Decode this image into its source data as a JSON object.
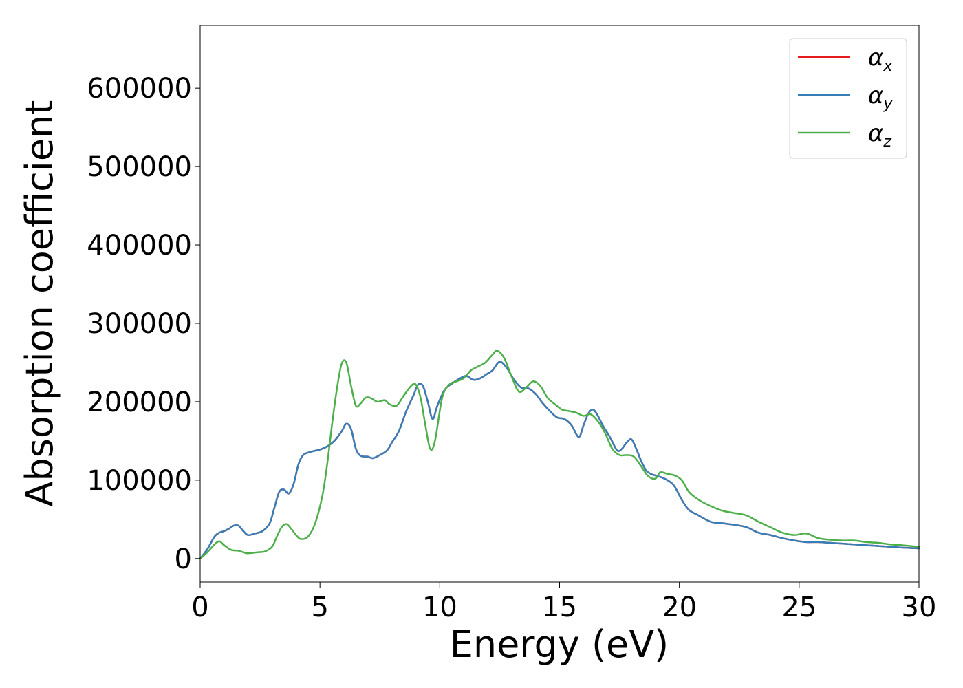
{
  "chart_data": {
    "type": "line",
    "title": "",
    "xlabel": "Energy (eV)",
    "ylabel": "Absorption coefficient",
    "xlim": [
      0,
      30
    ],
    "ylim": [
      -30000,
      680000
    ],
    "xticks": [
      0,
      5,
      10,
      15,
      20,
      25,
      30
    ],
    "yticks": [
      0,
      100000,
      200000,
      300000,
      400000,
      500000,
      600000
    ],
    "grid": false,
    "legend_position": "top-right",
    "series": [
      {
        "name": "α",
        "subscript": "x",
        "color": "#e41a1c",
        "x": [
          0,
          0.3,
          0.6,
          0.8,
          1.0,
          1.2,
          1.4,
          1.6,
          1.8,
          2.0,
          2.3,
          2.6,
          2.9,
          3.1,
          3.3,
          3.5,
          3.7,
          3.9,
          4.1,
          4.3,
          4.6,
          5.0,
          5.3,
          5.6,
          5.9,
          6.1,
          6.3,
          6.5,
          6.7,
          7.0,
          7.2,
          7.5,
          7.8,
          8.0,
          8.3,
          8.6,
          8.9,
          9.1,
          9.3,
          9.5,
          9.7,
          9.9,
          10.2,
          10.5,
          10.8,
          11.1,
          11.4,
          11.7,
          12.0,
          12.2,
          12.5,
          12.8,
          13.1,
          13.4,
          13.7,
          14.0,
          14.3,
          14.6,
          14.9,
          15.2,
          15.5,
          15.8,
          16.0,
          16.2,
          16.4,
          16.6,
          16.8,
          17.1,
          17.4,
          17.6,
          17.8,
          18.0,
          18.2,
          18.4,
          18.6,
          18.8,
          19.0,
          19.3,
          19.6,
          19.8,
          20.1,
          20.4,
          20.8,
          21.3,
          21.8,
          22.3,
          22.8,
          23.3,
          23.8,
          24.3,
          24.8,
          25.3,
          25.8,
          26.3,
          26.8,
          27.3,
          27.8,
          28.3,
          28.8,
          29.3,
          30.0
        ],
        "values": [
          0,
          12000,
          28000,
          33000,
          35000,
          38000,
          42000,
          42000,
          35000,
          30000,
          32000,
          35000,
          45000,
          65000,
          85000,
          88000,
          83000,
          95000,
          120000,
          132000,
          136000,
          139000,
          143000,
          150000,
          162000,
          172000,
          165000,
          140000,
          131000,
          130000,
          128000,
          132000,
          138000,
          148000,
          163000,
          188000,
          208000,
          222000,
          220000,
          200000,
          178000,
          195000,
          215000,
          223000,
          229000,
          233000,
          228000,
          230000,
          236000,
          240000,
          251000,
          243000,
          228000,
          218000,
          217000,
          210000,
          198000,
          188000,
          180000,
          178000,
          170000,
          155000,
          170000,
          185000,
          190000,
          182000,
          170000,
          155000,
          138000,
          140000,
          148000,
          152000,
          140000,
          125000,
          113000,
          108000,
          106000,
          103000,
          98000,
          92000,
          75000,
          62000,
          55000,
          47000,
          45000,
          43000,
          40000,
          33000,
          30000,
          26000,
          23000,
          21000,
          21000,
          20000,
          19000,
          18000,
          17000,
          16000,
          15000,
          14000,
          13000
        ]
      },
      {
        "name": "α",
        "subscript": "y",
        "color": "#377eb8",
        "x": [
          0,
          0.3,
          0.6,
          0.8,
          1.0,
          1.2,
          1.4,
          1.6,
          1.8,
          2.0,
          2.3,
          2.6,
          2.9,
          3.1,
          3.3,
          3.5,
          3.7,
          3.9,
          4.1,
          4.3,
          4.6,
          5.0,
          5.3,
          5.6,
          5.9,
          6.1,
          6.3,
          6.5,
          6.7,
          7.0,
          7.2,
          7.5,
          7.8,
          8.0,
          8.3,
          8.6,
          8.9,
          9.1,
          9.3,
          9.5,
          9.7,
          9.9,
          10.2,
          10.5,
          10.8,
          11.1,
          11.4,
          11.7,
          12.0,
          12.2,
          12.5,
          12.8,
          13.1,
          13.4,
          13.7,
          14.0,
          14.3,
          14.6,
          14.9,
          15.2,
          15.5,
          15.8,
          16.0,
          16.2,
          16.4,
          16.6,
          16.8,
          17.1,
          17.4,
          17.6,
          17.8,
          18.0,
          18.2,
          18.4,
          18.6,
          18.8,
          19.0,
          19.3,
          19.6,
          19.8,
          20.1,
          20.4,
          20.8,
          21.3,
          21.8,
          22.3,
          22.8,
          23.3,
          23.8,
          24.3,
          24.8,
          25.3,
          25.8,
          26.3,
          26.8,
          27.3,
          27.8,
          28.3,
          28.8,
          29.3,
          30.0
        ],
        "values": [
          0,
          12000,
          28000,
          33000,
          35000,
          38000,
          42000,
          42000,
          35000,
          30000,
          32000,
          35000,
          45000,
          65000,
          85000,
          88000,
          83000,
          95000,
          120000,
          132000,
          136000,
          139000,
          143000,
          150000,
          162000,
          172000,
          165000,
          140000,
          131000,
          130000,
          128000,
          132000,
          138000,
          148000,
          163000,
          188000,
          208000,
          222000,
          220000,
          200000,
          178000,
          195000,
          215000,
          223000,
          229000,
          233000,
          228000,
          230000,
          236000,
          240000,
          251000,
          243000,
          228000,
          218000,
          217000,
          210000,
          198000,
          188000,
          180000,
          178000,
          170000,
          155000,
          170000,
          185000,
          190000,
          182000,
          170000,
          155000,
          138000,
          140000,
          148000,
          152000,
          140000,
          125000,
          113000,
          108000,
          106000,
          103000,
          98000,
          92000,
          75000,
          62000,
          55000,
          47000,
          45000,
          43000,
          40000,
          33000,
          30000,
          26000,
          23000,
          21000,
          21000,
          20000,
          19000,
          18000,
          17000,
          16000,
          15000,
          14000,
          13000
        ]
      },
      {
        "name": "α",
        "subscript": "z",
        "color": "#4daf4a",
        "x": [
          0,
          0.3,
          0.6,
          0.8,
          1.0,
          1.3,
          1.6,
          1.9,
          2.1,
          2.4,
          2.7,
          3.0,
          3.2,
          3.4,
          3.6,
          3.8,
          4.0,
          4.2,
          4.5,
          4.8,
          5.1,
          5.3,
          5.5,
          5.7,
          5.9,
          6.1,
          6.3,
          6.5,
          6.7,
          6.9,
          7.1,
          7.4,
          7.7,
          7.9,
          8.2,
          8.5,
          8.8,
          9.0,
          9.2,
          9.4,
          9.6,
          9.8,
          10.1,
          10.4,
          10.7,
          11.0,
          11.3,
          11.6,
          11.9,
          12.2,
          12.4,
          12.7,
          13.0,
          13.3,
          13.6,
          13.9,
          14.2,
          14.5,
          14.8,
          15.1,
          15.4,
          15.7,
          16.0,
          16.3,
          16.6,
          16.9,
          17.2,
          17.5,
          17.8,
          18.1,
          18.4,
          18.7,
          19.0,
          19.2,
          19.5,
          19.8,
          20.1,
          20.4,
          20.8,
          21.3,
          21.8,
          22.3,
          22.8,
          23.3,
          23.8,
          24.3,
          24.8,
          25.3,
          25.8,
          26.3,
          26.8,
          27.3,
          27.8,
          28.3,
          28.8,
          29.3,
          30.0
        ],
        "values": [
          0,
          8000,
          18000,
          22000,
          17000,
          11000,
          10000,
          7000,
          7000,
          8000,
          9000,
          15000,
          28000,
          40000,
          44000,
          38000,
          30000,
          25000,
          28000,
          45000,
          80000,
          120000,
          170000,
          215000,
          248000,
          250000,
          220000,
          195000,
          198000,
          205000,
          205000,
          200000,
          202000,
          197000,
          195000,
          208000,
          220000,
          222000,
          205000,
          170000,
          140000,
          150000,
          205000,
          222000,
          226000,
          230000,
          240000,
          245000,
          250000,
          260000,
          265000,
          255000,
          232000,
          213000,
          218000,
          226000,
          220000,
          205000,
          197000,
          190000,
          188000,
          186000,
          182000,
          184000,
          175000,
          160000,
          140000,
          132000,
          132000,
          130000,
          118000,
          105000,
          102000,
          110000,
          108000,
          106000,
          100000,
          85000,
          75000,
          67000,
          61000,
          58000,
          55000,
          47000,
          40000,
          33000,
          30000,
          32000,
          26000,
          24000,
          23000,
          23000,
          21000,
          20000,
          18000,
          17000,
          15000
        ]
      }
    ]
  }
}
